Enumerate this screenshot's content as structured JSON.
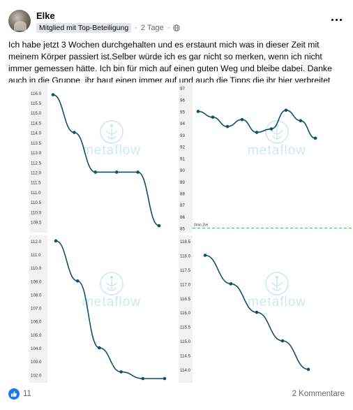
{
  "post": {
    "author": "Elke",
    "badge": "Mitglied mit Top-Beteiligung",
    "time": "2 Tage",
    "text": "Ich habe jetzt 3 Wochen durchgehalten und es erstaunt mich was in dieser Zeit mit meinem Körper passiert ist.Selber würde ich es gar nicht so merken, wenn ich nicht immer gemessen hätte. Ich bin für mich auf einen guten Weg und bleibe dabei. Danke auch in die Gruppe, ihr baut einen immer auf und auch die Tipps die ihr hier verbreitet sind gut.",
    "likes": "11",
    "comments": "2 Kommentare",
    "icons": {
      "more": "more-options-icon",
      "globe": "globe-icon",
      "like": "like-icon"
    }
  },
  "watermark": "metaflow",
  "colors": {
    "line": "#0f4f69",
    "watermark": "#cfe8ef",
    "axis_bg": "#f2f2f2",
    "goal": "#5cc26a",
    "like": "#1877f2"
  },
  "chart_data": [
    {
      "type": "line",
      "y_ticks": [
        "116.0",
        "115.5",
        "115.0",
        "114.5",
        "114.0",
        "113.5",
        "113.0",
        "112.5",
        "112.0",
        "111.5",
        "111.0",
        "110.5",
        "110.0",
        "109.5"
      ],
      "ylim": [
        109.2,
        116.1
      ],
      "x": [
        0,
        1,
        2,
        3,
        4,
        5
      ],
      "values": [
        115.9,
        114.0,
        112.0,
        112.0,
        112.0,
        109.3
      ]
    },
    {
      "type": "line",
      "y_ticks": [
        "97",
        "96",
        "95",
        "94",
        "93",
        "92",
        "91",
        "90",
        "89",
        "88",
        "87",
        "86",
        "85"
      ],
      "ylim": [
        84.8,
        97.0
      ],
      "x": [
        0,
        1,
        2,
        3,
        4,
        5,
        6,
        7,
        8
      ],
      "values": [
        95.0,
        94.5,
        93.7,
        94.3,
        93.2,
        93.5,
        95.1,
        94.2,
        92.7
      ],
      "goal_value": 85,
      "goal_label": "0min Ziel"
    },
    {
      "type": "line",
      "y_ticks": [
        "112.0",
        "111.0",
        "110.0",
        "109.0",
        "108.0",
        "107.0",
        "106.0",
        "105.0",
        "104.0",
        "103.0",
        "102.0"
      ],
      "ylim": [
        101.7,
        112.2
      ],
      "x": [
        0,
        1,
        2,
        3,
        4,
        5
      ],
      "values": [
        112.0,
        109.0,
        104.0,
        102.2,
        101.7,
        101.7
      ]
    },
    {
      "type": "line",
      "y_ticks": [
        "118.5",
        "118.0",
        "117.5",
        "117.0",
        "116.5",
        "116.0",
        "115.5",
        "115.0",
        "114.5",
        "114.0"
      ],
      "ylim": [
        113.8,
        118.6
      ],
      "x": [
        0,
        1,
        2,
        3,
        4
      ],
      "values": [
        118.0,
        117.0,
        116.0,
        115.0,
        114.0
      ]
    }
  ]
}
